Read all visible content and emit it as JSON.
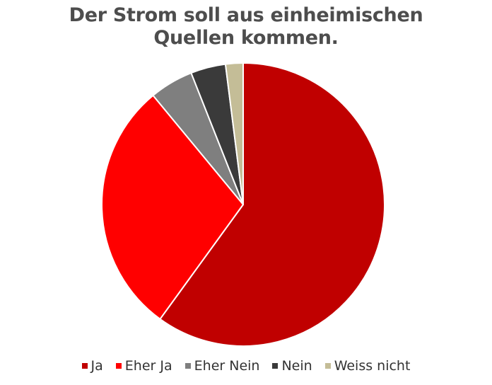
{
  "chart_data": {
    "type": "pie",
    "title": "Der Strom soll aus einheimischen Quellen kommen.",
    "title_lines": [
      "Der Strom soll aus einheimischen",
      "Quellen kommen."
    ],
    "categories": [
      "Ja",
      "Eher Ja",
      "Eher Nein",
      "Nein",
      "Weiss nicht"
    ],
    "values": [
      60,
      29,
      5,
      4,
      2
    ],
    "colors": [
      "#c00000",
      "#ff0000",
      "#7f7f7f",
      "#3a3a3a",
      "#c4bd97"
    ],
    "legend_position": "bottom",
    "start_angle": "top, clockwise"
  }
}
